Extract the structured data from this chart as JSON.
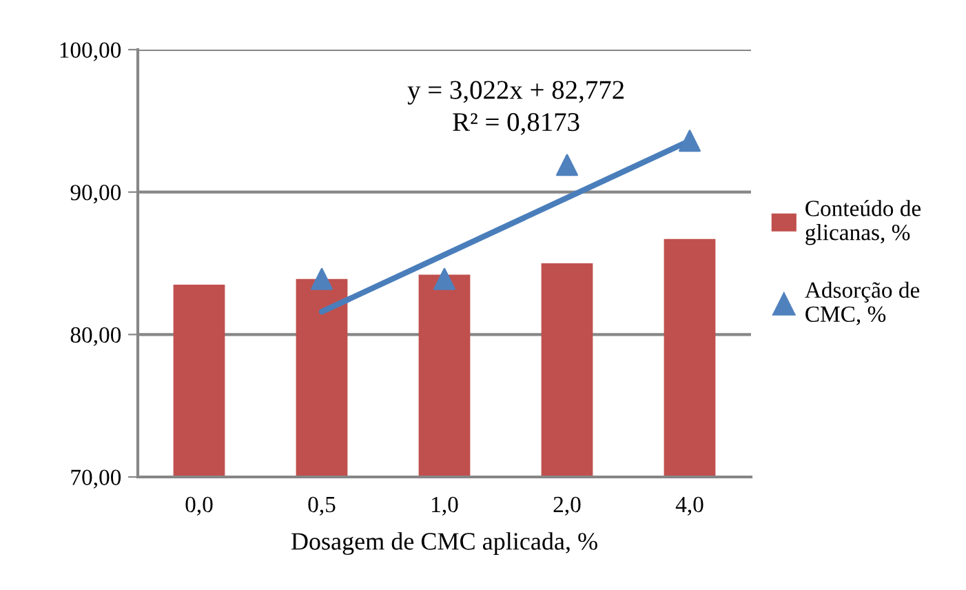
{
  "chart_data": {
    "type": "bar",
    "xlabel": "Dosagem de CMC aplicada, %",
    "categories": [
      "0,0",
      "0,5",
      "1,0",
      "2,0",
      "4,0"
    ],
    "series": [
      {
        "name": "Conteúdo de glicanas, %",
        "color": "#c0504d",
        "values": [
          83.5,
          83.9,
          84.2,
          85.0,
          86.7
        ]
      },
      {
        "name": "Adsorção de CMC, %",
        "type": "scatter",
        "color": "#4f81bd",
        "marker": "triangle",
        "values": [
          null,
          83.9,
          83.9,
          91.9,
          93.6
        ]
      },
      {
        "type": "line",
        "color": "#4a7ebb",
        "x": [
          "0,5",
          "4,0"
        ],
        "values": [
          81.6,
          93.6
        ]
      }
    ],
    "ylim": [
      70,
      100
    ],
    "yticks": [
      {
        "value": 70,
        "label": "70,00"
      },
      {
        "value": 80,
        "label": "80,00"
      },
      {
        "value": 90,
        "label": "90,00"
      },
      {
        "value": 100,
        "label": "100,00"
      }
    ],
    "grid": "y",
    "legend": "right",
    "annotations": [
      "y = 3,022x + 82,772",
      "R² = 0,8173"
    ]
  }
}
